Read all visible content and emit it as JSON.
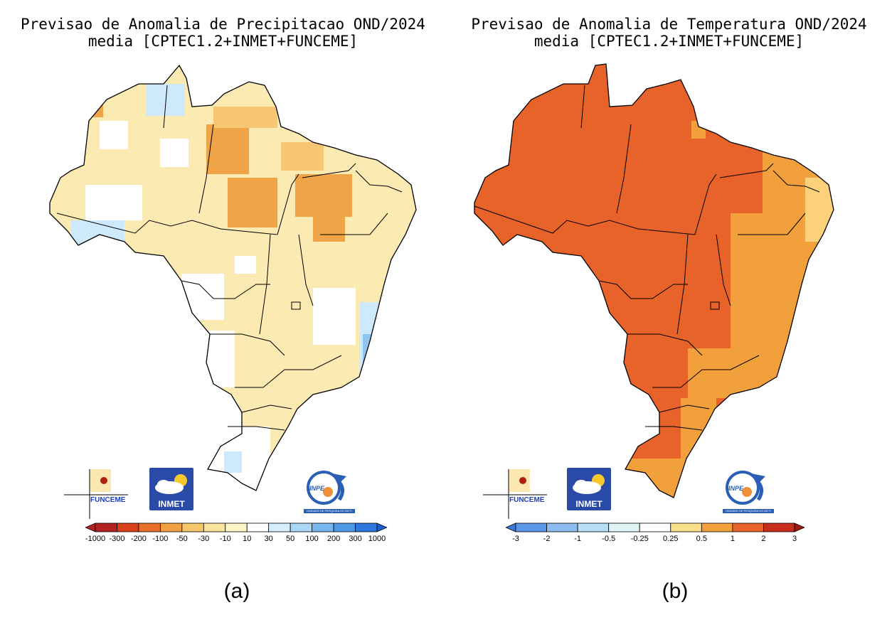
{
  "panels": [
    {
      "id": "a",
      "title_line1": "Previsao de Anomalia de Precipitacao OND/2024",
      "title_line2": "media [CPTEC1.2+INMET+FUNCEME]",
      "caption": "(a)",
      "colorbar": {
        "labels": [
          "-1000",
          "-300",
          "-200",
          "-100",
          "-50",
          "-30",
          "-10",
          "10",
          "30",
          "50",
          "100",
          "200",
          "300",
          "1000"
        ],
        "colors": [
          "#b22222",
          "#d9401a",
          "#e8702a",
          "#f0a040",
          "#f6c66a",
          "#fae39a",
          "#fdf4c8",
          "#ffffff",
          "#d5efff",
          "#a8d8f6",
          "#78b8ee",
          "#4f98e6",
          "#2e78dd",
          "#1b5ccf"
        ]
      }
    },
    {
      "id": "b",
      "title_line1": "Previsao de Anomalia de Temperatura OND/2024",
      "title_line2": "media [CPTEC1.2+INMET+FUNCEME]",
      "caption": "(b)",
      "colorbar": {
        "labels": [
          "-3",
          "-2",
          "-1",
          "-0.5",
          "-0.25",
          "0.25",
          "0.5",
          "1",
          "2",
          "3"
        ],
        "colors": [
          "#3a78e0",
          "#5b98e8",
          "#8cbcf0",
          "#b8def5",
          "#dff4f4",
          "#ffffff",
          "#fbe08a",
          "#f2a03c",
          "#e8632a",
          "#c82c1c",
          "#a01a10"
        ]
      }
    }
  ],
  "logos": {
    "funceme": "FUNCEME",
    "inmet": "INMET",
    "inpe": "INPE",
    "inpe_sub": "UNIDADE DE PESQUISA DO MCTI"
  }
}
